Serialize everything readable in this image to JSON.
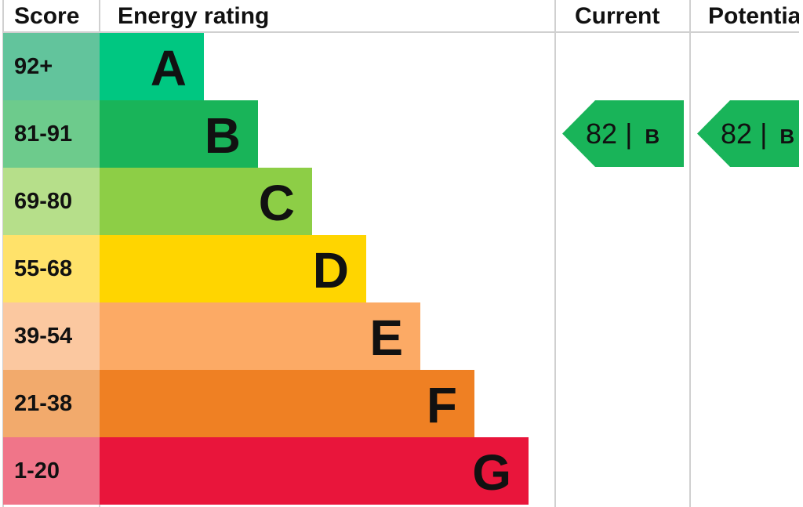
{
  "headers": {
    "score": "Score",
    "rating": "Energy rating",
    "current": "Current",
    "potential": "Potential"
  },
  "chart_data": {
    "type": "table",
    "bands": [
      {
        "score": "92+",
        "letter": "A",
        "color": "#00c781",
        "score_color": "#62c49c"
      },
      {
        "score": "81-91",
        "letter": "B",
        "color": "#19b459",
        "score_color": "#6dcb8c"
      },
      {
        "score": "69-80",
        "letter": "C",
        "color": "#8dce46",
        "score_color": "#b6df8a"
      },
      {
        "score": "55-68",
        "letter": "D",
        "color": "#ffd500",
        "score_color": "#ffe26a"
      },
      {
        "score": "39-54",
        "letter": "E",
        "color": "#fcaa65",
        "score_color": "#fbc8a0"
      },
      {
        "score": "21-38",
        "letter": "F",
        "color": "#ef8023",
        "score_color": "#f2aa6c"
      },
      {
        "score": "1-20",
        "letter": "G",
        "color": "#e9153b",
        "score_color": "#f07589"
      }
    ],
    "current": {
      "score": "82",
      "separator": "|",
      "letter": "B",
      "band_index": 1,
      "color": "#19b459"
    },
    "potential": {
      "score": "82",
      "separator": "|",
      "letter": "B",
      "band_index": 1,
      "color": "#19b459"
    }
  }
}
